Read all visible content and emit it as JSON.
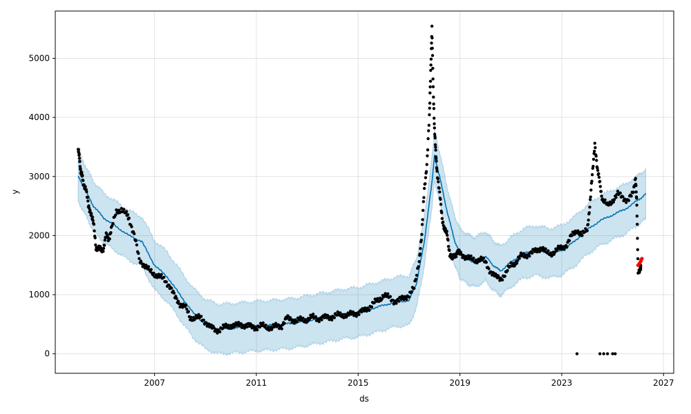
{
  "chart_data": {
    "type": "line",
    "xlabel": "ds",
    "ylabel": "y",
    "xlim": [
      2003.1,
      2027.4
    ],
    "ylim": [
      -330,
      5800
    ],
    "x_ticks": [
      2007,
      2011,
      2015,
      2019,
      2023,
      2027
    ],
    "y_ticks": [
      0,
      1000,
      2000,
      3000,
      4000,
      5000
    ],
    "grid": true,
    "colors": {
      "actual": "#000000",
      "forecast_line": "#0072B2",
      "uncertainty_band": "#0072B2",
      "future_points": "#ff0000"
    },
    "series": [
      {
        "role": "forecast",
        "x": [
          2004.0,
          2004.3,
          2004.6,
          2005.0,
          2005.5,
          2006.0,
          2006.5,
          2007.0,
          2007.5,
          2008.0,
          2008.5,
          2009.0,
          2009.5,
          2010.0,
          2010.5,
          2011.0,
          2011.5,
          2012.0,
          2012.5,
          2013.0,
          2013.5,
          2014.0,
          2014.5,
          2015.0,
          2015.5,
          2016.0,
          2016.5,
          2017.0,
          2017.3,
          2017.6,
          2017.9,
          2018.0,
          2018.2,
          2018.5,
          2018.8,
          2019.0,
          2019.3,
          2019.6,
          2020.0,
          2020.3,
          2020.6,
          2021.0,
          2021.5,
          2022.0,
          2022.5,
          2023.0,
          2023.5,
          2024.0,
          2024.5,
          2025.0,
          2025.5,
          2026.0,
          2026.3
        ],
        "y": [
          3000,
          2750,
          2500,
          2300,
          2150,
          2000,
          1900,
          1500,
          1300,
          1000,
          700,
          500,
          420,
          430,
          450,
          470,
          480,
          500,
          520,
          560,
          600,
          640,
          680,
          700,
          760,
          820,
          880,
          900,
          1200,
          1900,
          2900,
          3350,
          3000,
          2400,
          1900,
          1700,
          1600,
          1550,
          1650,
          1500,
          1400,
          1550,
          1700,
          1750,
          1700,
          1750,
          1900,
          2100,
          2250,
          2350,
          2450,
          2600,
          2700
        ]
      },
      {
        "role": "actual",
        "x": [
          2004.0,
          2004.05,
          2004.1,
          2004.15,
          2004.2,
          2004.3,
          2004.4,
          2004.5,
          2004.6,
          2004.7,
          2004.8,
          2004.9,
          2005.0,
          2005.1,
          2005.2,
          2005.3,
          2005.5,
          2005.7,
          2005.9,
          2006.0,
          2006.2,
          2006.4,
          2006.6,
          2006.8,
          2007.0,
          2007.2,
          2007.4,
          2007.6,
          2007.8,
          2008.0,
          2008.2,
          2008.4,
          2008.6,
          2008.8,
          2009.0,
          2009.2,
          2009.4,
          2009.6,
          2009.8,
          2010.0,
          2010.2,
          2010.4,
          2010.6,
          2010.8,
          2011.0,
          2011.2,
          2011.4,
          2011.6,
          2011.8,
          2012.0,
          2012.2,
          2012.4,
          2012.6,
          2012.8,
          2013.0,
          2013.2,
          2013.4,
          2013.6,
          2013.8,
          2014.0,
          2014.2,
          2014.4,
          2014.6,
          2014.8,
          2015.0,
          2015.2,
          2015.4,
          2015.6,
          2015.8,
          2016.0,
          2016.2,
          2016.4,
          2016.6,
          2016.8,
          2017.0,
          2017.2,
          2017.4,
          2017.5,
          2017.6,
          2017.7,
          2017.8,
          2017.85,
          2017.9,
          2017.95,
          2018.0,
          2018.05,
          2018.1,
          2018.2,
          2018.3,
          2018.4,
          2018.5,
          2018.6,
          2018.7,
          2018.8,
          2018.9,
          2019.0,
          2019.2,
          2019.4,
          2019.6,
          2019.8,
          2020.0,
          2020.2,
          2020.4,
          2020.6,
          2020.8,
          2021.0,
          2021.2,
          2021.4,
          2021.6,
          2021.8,
          2022.0,
          2022.2,
          2022.4,
          2022.6,
          2022.8,
          2023.0,
          2023.2,
          2023.4,
          2023.6,
          2023.8,
          2024.0,
          2024.1,
          2024.2,
          2024.3,
          2024.4,
          2024.5,
          2024.6,
          2024.8,
          2025.0,
          2025.2,
          2025.4,
          2025.6,
          2025.8,
          2025.9,
          2025.95,
          2026.0,
          2026.1
        ],
        "y": [
          3460,
          3300,
          3100,
          3000,
          2900,
          2800,
          2500,
          2400,
          2200,
          1800,
          1780,
          1750,
          1800,
          2000,
          1950,
          2100,
          2400,
          2450,
          2350,
          2300,
          2000,
          1600,
          1500,
          1400,
          1350,
          1300,
          1250,
          1150,
          950,
          850,
          800,
          600,
          620,
          600,
          550,
          450,
          400,
          420,
          450,
          480,
          470,
          500,
          480,
          460,
          450,
          470,
          460,
          430,
          470,
          480,
          600,
          580,
          560,
          570,
          580,
          620,
          600,
          610,
          620,
          630,
          650,
          660,
          650,
          680,
          700,
          720,
          780,
          850,
          900,
          1000,
          950,
          900,
          900,
          950,
          1000,
          1100,
          1600,
          2000,
          2800,
          3200,
          4000,
          4800,
          5490,
          4500,
          3800,
          3400,
          3100,
          2700,
          2300,
          2100,
          2000,
          1700,
          1600,
          1680,
          1720,
          1700,
          1650,
          1600,
          1580,
          1600,
          1550,
          1400,
          1300,
          1280,
          1350,
          1500,
          1550,
          1650,
          1680,
          1700,
          1750,
          1800,
          1700,
          1700,
          1750,
          1800,
          1850,
          2000,
          2100,
          2000,
          2100,
          2500,
          3000,
          3580,
          3100,
          2900,
          2600,
          2500,
          2600,
          2700,
          2650,
          2600,
          2700,
          3000,
          2500,
          1400,
          1450
        ]
      },
      {
        "role": "outliers",
        "x": [
          2023.6,
          2024.5,
          2024.65,
          2024.8,
          2025.0,
          2025.1
        ],
        "y": [
          0,
          0,
          0,
          0,
          0,
          0
        ]
      },
      {
        "role": "future",
        "x": [
          2026.0,
          2026.05,
          2026.1,
          2026.12,
          2026.15
        ],
        "y": [
          1500,
          1530,
          1560,
          1590,
          1610
        ]
      }
    ]
  }
}
